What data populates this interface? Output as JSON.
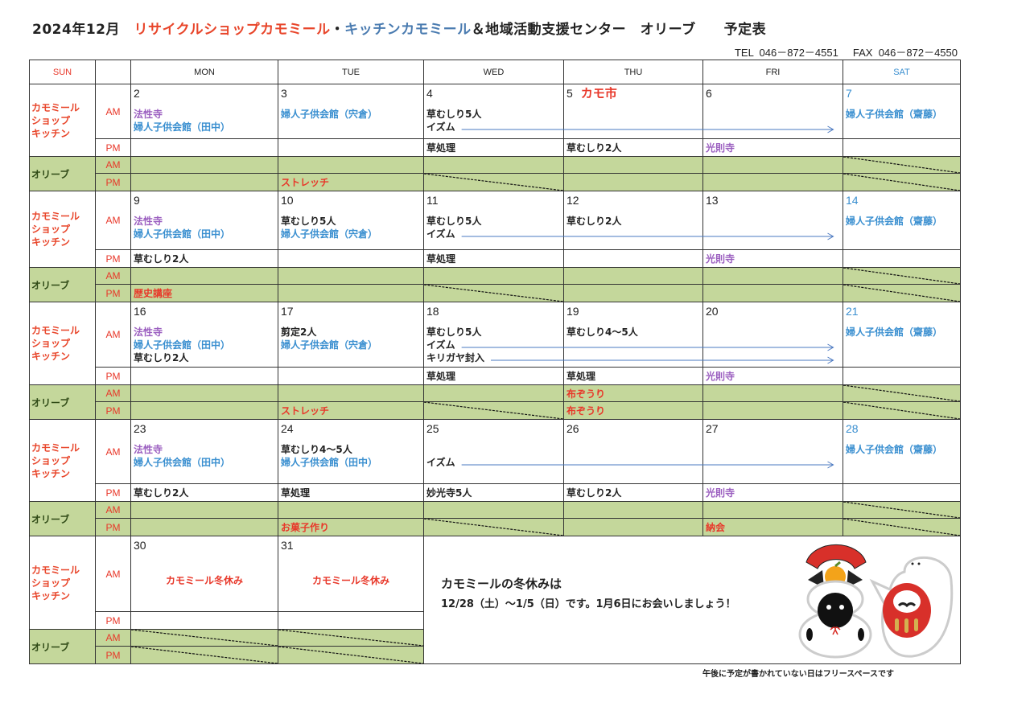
{
  "colors": {
    "red": "#e8382a",
    "orange": "#e8452a",
    "purple": "#9b5fc0",
    "blue": "#3a8fd0",
    "black": "#222222",
    "steel": "#4a7bb0",
    "olive_bg": "#c4d79b",
    "arrow": "#4a78c0"
  },
  "title": {
    "month": "2024年12月",
    "shop": "リサイクルショップカモミール",
    "dot": "・",
    "kitchen": "キッチンカモミール",
    "rest": "＆地域活動支援センター　オリーブ　　予定表"
  },
  "contact": "TEL  046－872－4551     FAX  046－872－4550",
  "header": {
    "days": [
      "SUN",
      "",
      "MON",
      "TUE",
      "WED",
      "THU",
      "FRI",
      "SAT"
    ]
  },
  "labels": {
    "kamomile": "カモミール\nショップ\nキッチン",
    "olive": "オリーブ",
    "am": "AM",
    "pm": "PM"
  },
  "weeks": [
    {
      "days": [
        {
          "date": "2",
          "am": [
            {
              "t": "法性寺",
              "c": "purple"
            },
            {
              "t": "婦人子供会館（田中）",
              "c": "blue"
            }
          ],
          "pm": null,
          "oam": null,
          "opm": null
        },
        {
          "date": "3",
          "am": [
            {
              "t": "婦人子供会館（宍倉）",
              "c": "blue"
            }
          ],
          "pm": null,
          "oam": null,
          "opm": {
            "t": "ストレッチ",
            "c": "red"
          }
        },
        {
          "date": "4",
          "am": [
            {
              "t": "草むしり5人",
              "c": "black"
            },
            {
              "t": "イズム",
              "c": "black",
              "arrow": true
            }
          ],
          "pm": {
            "t": "草処理",
            "c": "black"
          },
          "oam": null,
          "opm": null,
          "opm_slash": true
        },
        {
          "date": "5",
          "event": "カモ市",
          "am": [],
          "pm": {
            "t": "草むしり2人",
            "c": "black"
          },
          "oam": null,
          "opm": null
        },
        {
          "date": "6",
          "am": [],
          "pm": {
            "t": "光則寺",
            "c": "purple"
          },
          "oam": null,
          "opm": null
        },
        {
          "date": "7",
          "sat": true,
          "am": [
            {
              "t": "婦人子供会館（齋藤）",
              "c": "blue"
            }
          ],
          "pm": null,
          "oam": null,
          "opm": null,
          "oam_slash": true,
          "opm_slash": true
        }
      ]
    },
    {
      "days": [
        {
          "date": "9",
          "am": [
            {
              "t": "法性寺",
              "c": "purple"
            },
            {
              "t": "婦人子供会館（田中）",
              "c": "blue"
            }
          ],
          "pm": {
            "t": "草むしり2人",
            "c": "black"
          },
          "oam": null,
          "opm": {
            "t": "歴史講座",
            "c": "red"
          }
        },
        {
          "date": "10",
          "am": [
            {
              "t": "草むしり5人",
              "c": "black"
            },
            {
              "t": "婦人子供会館（宍倉）",
              "c": "blue"
            }
          ],
          "pm": null,
          "oam": null,
          "opm": null
        },
        {
          "date": "11",
          "am": [
            {
              "t": "草むしり5人",
              "c": "black"
            },
            {
              "t": "イズム",
              "c": "black",
              "arrow": true
            }
          ],
          "pm": {
            "t": "草処理",
            "c": "black"
          },
          "oam": null,
          "opm": null,
          "opm_slash": true
        },
        {
          "date": "12",
          "am": [
            {
              "t": "草むしり2人",
              "c": "black"
            }
          ],
          "pm": null,
          "oam": null,
          "opm": null
        },
        {
          "date": "13",
          "am": [],
          "pm": {
            "t": "光則寺",
            "c": "purple"
          },
          "oam": null,
          "opm": null
        },
        {
          "date": "14",
          "sat": true,
          "am": [
            {
              "t": "婦人子供会館（齋藤）",
              "c": "blue"
            }
          ],
          "pm": null,
          "oam": null,
          "opm": null,
          "oam_slash": true,
          "opm_slash": true
        }
      ]
    },
    {
      "days": [
        {
          "date": "16",
          "am": [
            {
              "t": "法性寺",
              "c": "purple"
            },
            {
              "t": "婦人子供会館（田中）",
              "c": "blue"
            },
            {
              "t": "草むしり2人",
              "c": "black"
            }
          ],
          "pm": null,
          "oam": null,
          "opm": null
        },
        {
          "date": "17",
          "am": [
            {
              "t": "剪定2人",
              "c": "black"
            },
            {
              "t": "婦人子供会館（宍倉）",
              "c": "blue"
            }
          ],
          "pm": null,
          "oam": null,
          "opm": {
            "t": "ストレッチ",
            "c": "red"
          }
        },
        {
          "date": "18",
          "am": [
            {
              "t": "草むしり5人",
              "c": "black"
            },
            {
              "t": "イズム",
              "c": "black",
              "arrow": true
            },
            {
              "t": "キリガヤ封入",
              "c": "black",
              "arrow": true
            }
          ],
          "pm": {
            "t": "草処理",
            "c": "black"
          },
          "oam": null,
          "opm": null,
          "opm_slash": true
        },
        {
          "date": "19",
          "am": [
            {
              "t": "草むしり4～5人",
              "c": "black"
            }
          ],
          "pm": {
            "t": "草処理",
            "c": "black"
          },
          "oam": {
            "t": "布ぞうり",
            "c": "red"
          },
          "opm": {
            "t": "布ぞうり",
            "c": "red"
          }
        },
        {
          "date": "20",
          "am": [],
          "pm": {
            "t": "光則寺",
            "c": "purple"
          },
          "oam": null,
          "opm": null
        },
        {
          "date": "21",
          "sat": true,
          "am": [
            {
              "t": "婦人子供会館（齋藤）",
              "c": "blue"
            }
          ],
          "pm": null,
          "oam": null,
          "opm": null,
          "oam_slash": true,
          "opm_slash": true
        }
      ]
    },
    {
      "days": [
        {
          "date": "23",
          "am": [
            {
              "t": "法性寺",
              "c": "purple"
            },
            {
              "t": "婦人子供会館（田中）",
              "c": "blue"
            }
          ],
          "pm": {
            "t": "草むしり2人",
            "c": "black"
          },
          "oam": null,
          "opm": null
        },
        {
          "date": "24",
          "am": [
            {
              "t": "草むしり4～5人",
              "c": "black"
            },
            {
              "t": "婦人子供会館（田中）",
              "c": "blue"
            }
          ],
          "pm": {
            "t": "草処理",
            "c": "black"
          },
          "oam": null,
          "opm": {
            "t": "お菓子作り",
            "c": "red"
          }
        },
        {
          "date": "25",
          "am": [
            {
              "t": "",
              "c": "black"
            },
            {
              "t": "イズム",
              "c": "black",
              "arrow": true
            }
          ],
          "pm": {
            "t": "妙光寺5人",
            "c": "black"
          },
          "oam": null,
          "opm": null,
          "opm_slash": true
        },
        {
          "date": "26",
          "am": [],
          "pm": {
            "t": "草むしり2人",
            "c": "black"
          },
          "oam": null,
          "opm": null
        },
        {
          "date": "27",
          "am": [],
          "pm": {
            "t": "光則寺",
            "c": "purple"
          },
          "oam": null,
          "opm": {
            "t": "納会",
            "c": "red"
          }
        },
        {
          "date": "28",
          "sat": true,
          "am": [
            {
              "t": "婦人子供会館（齋藤）",
              "c": "blue"
            }
          ],
          "pm": null,
          "oam": null,
          "opm": null,
          "oam_slash": true,
          "opm_slash": true
        }
      ]
    },
    {
      "days": [
        {
          "date": "30",
          "holiday": "カモミール冬休み",
          "am": [],
          "pm": null,
          "oam": null,
          "opm": null,
          "oam_slash": true,
          "opm_slash": true
        },
        {
          "date": "31",
          "holiday": "カモミール冬休み",
          "am": [],
          "pm": null,
          "oam": null,
          "opm": null,
          "oam_slash": true,
          "opm_slash": true
        }
      ],
      "message": {
        "line1": "カモミールの冬休みは",
        "line2": "12/28（土）～1/5（日）です。1月6日にお会いしましょう！"
      }
    }
  ],
  "footer_note": "午後に予定が書かれていない日はフリースペースです"
}
